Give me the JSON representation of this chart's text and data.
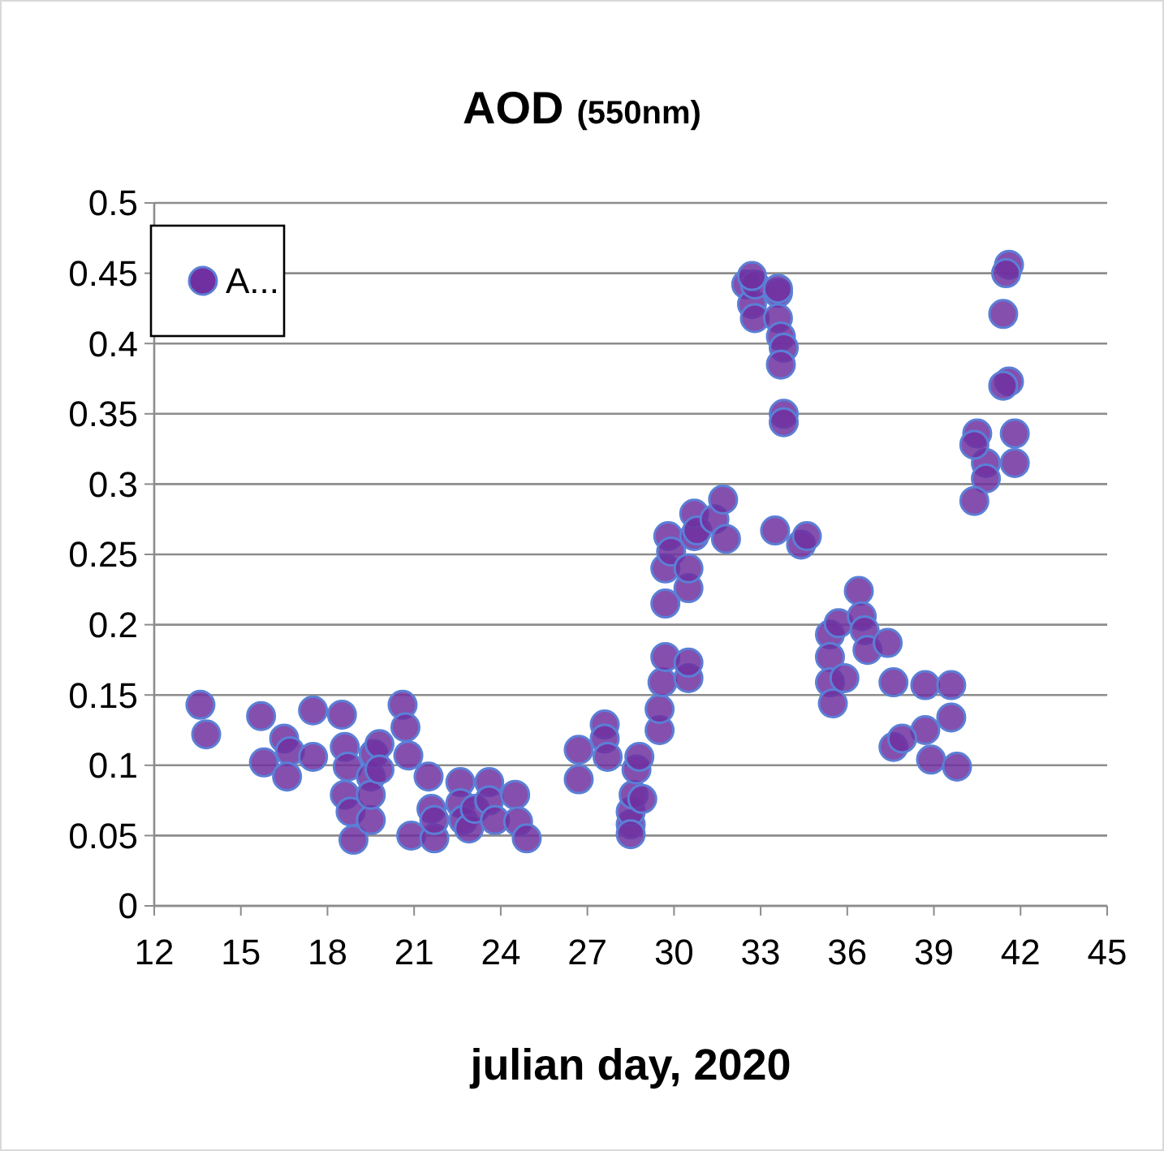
{
  "chart_data": {
    "type": "scatter",
    "title": "AOD",
    "subtitle": "(550nm)",
    "xlabel": "julian day, 2020",
    "xlim": [
      12,
      45
    ],
    "xticks": [
      12,
      15,
      18,
      21,
      24,
      27,
      30,
      33,
      36,
      39,
      42,
      45
    ],
    "ylim": [
      0,
      0.5
    ],
    "yticks": [
      0,
      0.05,
      0.1,
      0.15,
      0.2,
      0.25,
      0.3,
      0.35,
      0.4,
      0.45,
      0.5
    ],
    "grid": "y",
    "legend": "top left",
    "marker": "circle",
    "series": [
      {
        "name": "A...",
        "color": "#7030a0",
        "x": [
          13.6,
          13.8,
          15.7,
          15.8,
          16.5,
          16.7,
          16.6,
          17.5,
          17.5,
          18.5,
          18.6,
          18.7,
          18.6,
          18.8,
          18.9,
          19.5,
          19.6,
          19.8,
          19.5,
          19.5,
          19.8,
          20.6,
          20.7,
          20.8,
          20.9,
          21.5,
          21.6,
          21.7,
          21.7,
          22.6,
          22.6,
          22.7,
          22.9,
          23.1,
          23.6,
          23.6,
          23.8,
          24.5,
          24.6,
          24.9,
          26.7,
          26.7,
          27.6,
          27.6,
          27.7,
          28.5,
          28.5,
          28.6,
          28.7,
          28.8,
          28.9,
          28.5,
          29.5,
          29.5,
          29.6,
          29.7,
          29.7,
          29.7,
          29.8,
          29.9,
          30.5,
          30.5,
          30.5,
          30.5,
          30.7,
          30.7,
          30.8,
          31.4,
          31.7,
          31.8,
          33.5,
          34.4,
          34.6,
          32.5,
          32.7,
          32.8,
          32.8,
          33.6,
          33.6,
          33.7,
          33.8,
          33.7,
          33.8,
          33.8,
          32.7,
          33.6,
          35.4,
          35.4,
          35.4,
          35.5,
          35.7,
          35.9,
          36.4,
          36.5,
          36.6,
          36.7,
          37.4,
          37.6,
          38.7,
          39.6,
          37.6,
          38.9,
          39.8,
          39.6,
          38.7,
          37.9,
          41.6,
          41.4,
          41.6,
          40.5,
          41.8,
          41.8,
          40.8,
          40.8,
          40.4,
          40.4,
          41.5,
          41.4
        ],
        "values": [
          0.143,
          0.122,
          0.135,
          0.102,
          0.119,
          0.11,
          0.092,
          0.139,
          0.106,
          0.136,
          0.113,
          0.099,
          0.079,
          0.067,
          0.047,
          0.092,
          0.108,
          0.115,
          0.061,
          0.079,
          0.097,
          0.143,
          0.127,
          0.107,
          0.05,
          0.092,
          0.069,
          0.048,
          0.061,
          0.088,
          0.073,
          0.061,
          0.055,
          0.069,
          0.088,
          0.075,
          0.061,
          0.079,
          0.06,
          0.048,
          0.111,
          0.09,
          0.129,
          0.119,
          0.106,
          0.058,
          0.067,
          0.079,
          0.097,
          0.106,
          0.076,
          0.051,
          0.125,
          0.14,
          0.159,
          0.177,
          0.215,
          0.24,
          0.263,
          0.252,
          0.162,
          0.173,
          0.226,
          0.24,
          0.263,
          0.279,
          0.267,
          0.275,
          0.289,
          0.261,
          0.267,
          0.257,
          0.263,
          0.442,
          0.428,
          0.442,
          0.418,
          0.436,
          0.418,
          0.405,
          0.397,
          0.385,
          0.35,
          0.344,
          0.448,
          0.439,
          0.193,
          0.177,
          0.159,
          0.144,
          0.201,
          0.162,
          0.224,
          0.206,
          0.196,
          0.182,
          0.187,
          0.159,
          0.157,
          0.157,
          0.113,
          0.104,
          0.099,
          0.134,
          0.125,
          0.119,
          0.456,
          0.421,
          0.373,
          0.336,
          0.336,
          0.315,
          0.315,
          0.304,
          0.288,
          0.328,
          0.45,
          0.37
        ]
      }
    ]
  }
}
